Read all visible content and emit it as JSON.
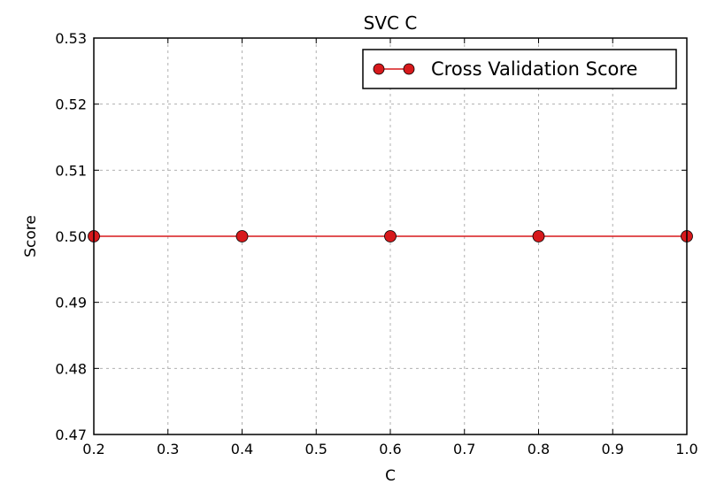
{
  "chart_data": {
    "type": "line",
    "title": "SVC C",
    "xlabel": "C",
    "ylabel": "Score",
    "xlim": [
      0.2,
      1.0
    ],
    "ylim": [
      0.47,
      0.53
    ],
    "x_ticks": [
      0.2,
      0.3,
      0.4,
      0.5,
      0.6,
      0.7,
      0.8,
      0.9,
      1.0
    ],
    "x_tick_labels": [
      "0.2",
      "0.3",
      "0.4",
      "0.5",
      "0.6",
      "0.7",
      "0.8",
      "0.9",
      "1.0"
    ],
    "y_ticks": [
      0.47,
      0.48,
      0.49,
      0.5,
      0.51,
      0.52,
      0.53
    ],
    "y_tick_labels": [
      "0.47",
      "0.48",
      "0.49",
      "0.50",
      "0.51",
      "0.52",
      "0.53"
    ],
    "grid": true,
    "legend_position": "top-right",
    "series": [
      {
        "name": "Cross Validation Score",
        "color": "#d7191c",
        "marker": "circle",
        "x": [
          0.2,
          0.4,
          0.6,
          0.8,
          1.0
        ],
        "y": [
          0.5,
          0.5,
          0.5,
          0.5,
          0.5
        ]
      }
    ]
  }
}
